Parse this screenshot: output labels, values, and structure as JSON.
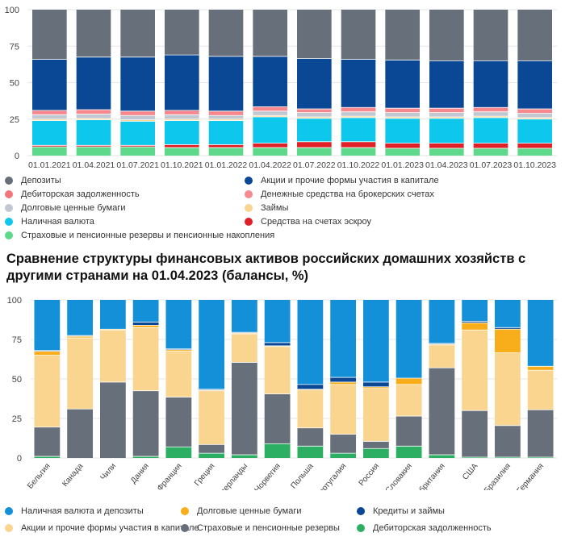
{
  "chart_data": [
    {
      "type": "bar",
      "stacked": true,
      "title": "",
      "xlabel": "",
      "ylabel": "",
      "ylim": [
        0,
        100
      ],
      "yticks": [
        "0",
        "25",
        "50",
        "75",
        "100"
      ],
      "categories": [
        "01.01.2021",
        "01.04.2021",
        "01.07.2021",
        "01.10.2021",
        "01.01.2022",
        "01.04.2022",
        "01.07.2022",
        "01.10.2022",
        "01.01.2023",
        "01.04.2023",
        "01.07.2023",
        "01.10.2023"
      ],
      "series": [
        {
          "name": "Страховые и пенсионные резервы и пенсионные накопления",
          "color": "#5ed98b",
          "values": [
            6,
            6,
            6,
            5.5,
            5.5,
            5.5,
            5.5,
            5.5,
            5,
            5,
            5,
            5
          ]
        },
        {
          "name": "Средства на счетах эскроу",
          "color": "#e11f26",
          "values": [
            1,
            1,
            1,
            2,
            2,
            3,
            4,
            4,
            3.5,
            3.5,
            3.5,
            3.5
          ]
        },
        {
          "name": "Наличная валюта",
          "color": "#0dc7ec",
          "values": [
            17,
            17.5,
            16.5,
            16.5,
            16.5,
            18,
            16,
            16.5,
            17,
            17,
            17.5,
            16.5
          ]
        },
        {
          "name": "Займы",
          "color": "#fad58f",
          "values": [
            1,
            1,
            1,
            1,
            1,
            1,
            1,
            1,
            1,
            1,
            1,
            1
          ]
        },
        {
          "name": "Долговые ценные бумаги",
          "color": "#c2c8d2",
          "values": [
            3,
            3,
            3,
            3,
            2.5,
            3,
            3,
            3,
            3,
            3,
            3,
            3
          ]
        },
        {
          "name": "Денежные средства на брокерских счетах",
          "color": "#f7888d",
          "values": [
            3,
            3,
            3,
            3,
            3,
            3,
            2.5,
            3,
            3,
            3,
            3,
            3
          ]
        },
        {
          "name": "Дебиторская задолженность",
          "color": "#f3767b",
          "values": [
            0,
            0,
            0,
            0,
            0,
            0,
            0,
            0,
            0,
            0,
            0,
            0
          ]
        },
        {
          "name": "Акции и прочие формы участия в капитале",
          "color": "#0a4896",
          "values": [
            35,
            36,
            37,
            38,
            37.5,
            34.5,
            34.5,
            33,
            33,
            32.5,
            32,
            33
          ]
        },
        {
          "name": "Депозиты",
          "color": "#676f7b",
          "values": [
            34,
            32.5,
            32.5,
            31,
            32,
            32,
            33.5,
            34,
            34.5,
            35,
            35,
            35
          ]
        }
      ],
      "legend": {
        "position": "bottom",
        "items": [
          {
            "label": "Депозиты",
            "color": "#676f7b"
          },
          {
            "label": "Акции и прочие формы участия в капитале",
            "color": "#0a4896"
          },
          {
            "label": "Дебиторская задолженность",
            "color": "#f3767b"
          },
          {
            "label": "Денежные средства на брокерских счетах",
            "color": "#f7888d"
          },
          {
            "label": "Долговые ценные бумаги",
            "color": "#c2c8d2"
          },
          {
            "label": "Займы",
            "color": "#fad58f"
          },
          {
            "label": "Наличная валюта",
            "color": "#0dc7ec"
          },
          {
            "label": "Средства на счетах эскроу",
            "color": "#e11f26"
          },
          {
            "label": "Страховые и пенсионные резервы и пенсионные накопления",
            "color": "#5ed98b"
          }
        ]
      }
    },
    {
      "type": "bar",
      "stacked": true,
      "title": "Сравнение структуры финансовых активов российских домашних хозяйств с другими странами на 01.04.2023 (балансы, %)",
      "xlabel": "",
      "ylabel": "",
      "ylim": [
        0,
        100
      ],
      "yticks": [
        "0",
        "25",
        "50",
        "75",
        "100"
      ],
      "categories": [
        "Бельгия",
        "Канада",
        "Чили",
        "Дания",
        "Франция",
        "Греция",
        "Нидерланды",
        "Норвегия",
        "Польша",
        "Португалия",
        "Россия",
        "Словакия",
        "Великобритания",
        "США",
        "Бразилия",
        "Германия"
      ],
      "series": [
        {
          "name": "Дебиторская задолженность",
          "color": "#2daf63",
          "values": [
            1,
            0,
            0,
            1,
            7,
            3,
            2,
            9,
            7.5,
            3,
            6,
            7.5,
            2,
            0.5,
            0.5,
            0.5
          ]
        },
        {
          "name": "Страховые и пенсионные резервы",
          "color": "#676f7b",
          "values": [
            18.5,
            31,
            48,
            41.5,
            31.5,
            5.5,
            58.5,
            31.5,
            11.5,
            12,
            4.5,
            19,
            55,
            29.5,
            20,
            30
          ]
        },
        {
          "name": "Акции и прочие формы участия в капитале",
          "color": "#fad58f",
          "values": [
            45.5,
            45,
            33,
            40,
            29,
            34,
            18,
            30,
            24,
            31.5,
            33.5,
            20,
            14.5,
            51,
            46,
            25
          ]
        },
        {
          "name": "Долговые ценные бумаги",
          "color": "#f8ad1b",
          "values": [
            2.5,
            1,
            0.5,
            1.5,
            1,
            0.5,
            0.5,
            0.5,
            0.5,
            1.5,
            1,
            4,
            0.5,
            4.5,
            15,
            2.5
          ]
        },
        {
          "name": "Кредиты и займы",
          "color": "#0a4896",
          "values": [
            0.5,
            0.5,
            0,
            2,
            0.5,
            0.5,
            0.5,
            2,
            3,
            3,
            3,
            0,
            0.5,
            1,
            1,
            0
          ]
        },
        {
          "name": "Наличная валюта и депозиты",
          "color": "#1390d8",
          "values": [
            32,
            22.5,
            18.5,
            14,
            31,
            56.5,
            20.5,
            27,
            53.5,
            49,
            52,
            49.5,
            27.5,
            13.5,
            17.5,
            42
          ]
        }
      ],
      "legend": {
        "position": "bottom",
        "items": [
          {
            "label": "Наличная валюта и депозиты",
            "color": "#1390d8"
          },
          {
            "label": "Долговые ценные бумаги",
            "color": "#f8ad1b"
          },
          {
            "label": "Кредиты и займы",
            "color": "#0a4896"
          },
          {
            "label": "Акции и прочие формы участия в капитале",
            "color": "#fad58f"
          },
          {
            "label": "Страховые и пенсионные резервы",
            "color": "#676f7b"
          },
          {
            "label": "Дебиторская задолженность",
            "color": "#2daf63"
          }
        ]
      }
    }
  ]
}
